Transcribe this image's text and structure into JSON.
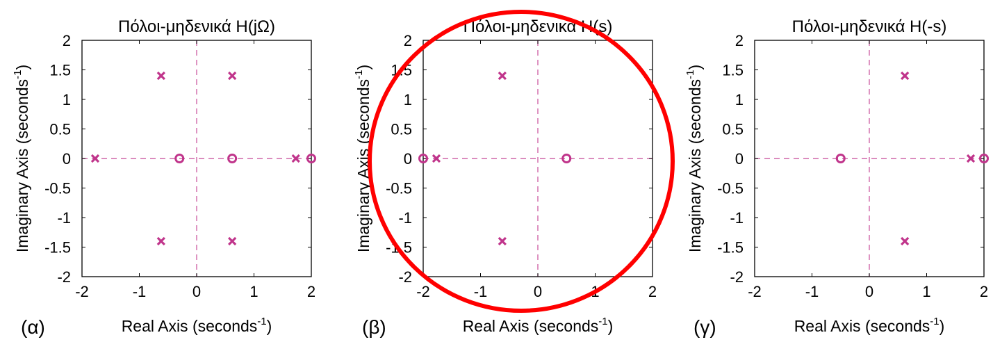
{
  "accent_color": "#c0348b",
  "highlight_color": "#ff0000",
  "chart_data": [
    {
      "type": "scatter",
      "panel_label": "(α)",
      "title": "Πόλοι-μηδενικά H(jΩ)",
      "xlabel": "Real Axis (seconds",
      "xlabel_sup": "-1",
      "xlabel_tail": ")",
      "ylabel": "Imaginary Axis (seconds",
      "ylabel_sup": "-1",
      "ylabel_tail": ")",
      "xlim": [
        -2,
        2
      ],
      "ylim": [
        -2,
        2
      ],
      "xticks": [
        "-2",
        "-1",
        "0",
        "1",
        "2"
      ],
      "yticks": [
        "2",
        "1.5",
        "1",
        "0.5",
        "0",
        "-0.5",
        "-1",
        "-1.5",
        "-2"
      ],
      "grid": false,
      "poles": [
        [
          -1.77,
          0
        ],
        [
          1.73,
          0
        ],
        [
          -0.62,
          1.4
        ],
        [
          0.62,
          1.4
        ],
        [
          -0.62,
          -1.4
        ],
        [
          0.62,
          -1.4
        ]
      ],
      "zeros": [
        [
          -0.3,
          0
        ],
        [
          0.62,
          0
        ],
        [
          2.0,
          0
        ]
      ],
      "highlighted": false
    },
    {
      "type": "scatter",
      "panel_label": "(β)",
      "title": "Πόλοι-μηδενικά H(s)",
      "xlabel": "Real Axis (seconds",
      "xlabel_sup": "-1",
      "xlabel_tail": ")",
      "ylabel": "Imaginary Axis (seconds",
      "ylabel_sup": "-1",
      "ylabel_tail": ")",
      "xlim": [
        -2,
        2
      ],
      "ylim": [
        -2,
        2
      ],
      "xticks": [
        "-2",
        "-1",
        "0",
        "1",
        "2"
      ],
      "yticks": [
        "2",
        "1.5",
        "1",
        "0.5",
        "0",
        "-0.5",
        "-1",
        "-1.5",
        "-2"
      ],
      "grid": false,
      "poles": [
        [
          -1.77,
          0
        ],
        [
          -0.62,
          1.4
        ],
        [
          -0.62,
          -1.4
        ]
      ],
      "zeros": [
        [
          -2.0,
          0
        ],
        [
          0.5,
          0
        ]
      ],
      "highlighted": true
    },
    {
      "type": "scatter",
      "panel_label": "(γ)",
      "title": "Πόλοι-μηδενικά H(-s)",
      "xlabel": "Real Axis (seconds",
      "xlabel_sup": "-1",
      "xlabel_tail": ")",
      "ylabel": "Imaginary Axis (seconds",
      "ylabel_sup": "-1",
      "ylabel_tail": ")",
      "xlim": [
        -2,
        2
      ],
      "ylim": [
        -2,
        2
      ],
      "xticks": [
        "-2",
        "-1",
        "0",
        "1",
        "2"
      ],
      "yticks": [
        "2",
        "1.5",
        "1",
        "0.5",
        "0",
        "-0.5",
        "-1",
        "-1.5",
        "-2"
      ],
      "grid": false,
      "poles": [
        [
          1.77,
          0
        ],
        [
          0.62,
          1.4
        ],
        [
          0.62,
          -1.4
        ]
      ],
      "zeros": [
        [
          -0.5,
          0
        ],
        [
          2.0,
          0
        ]
      ],
      "highlighted": false
    }
  ]
}
